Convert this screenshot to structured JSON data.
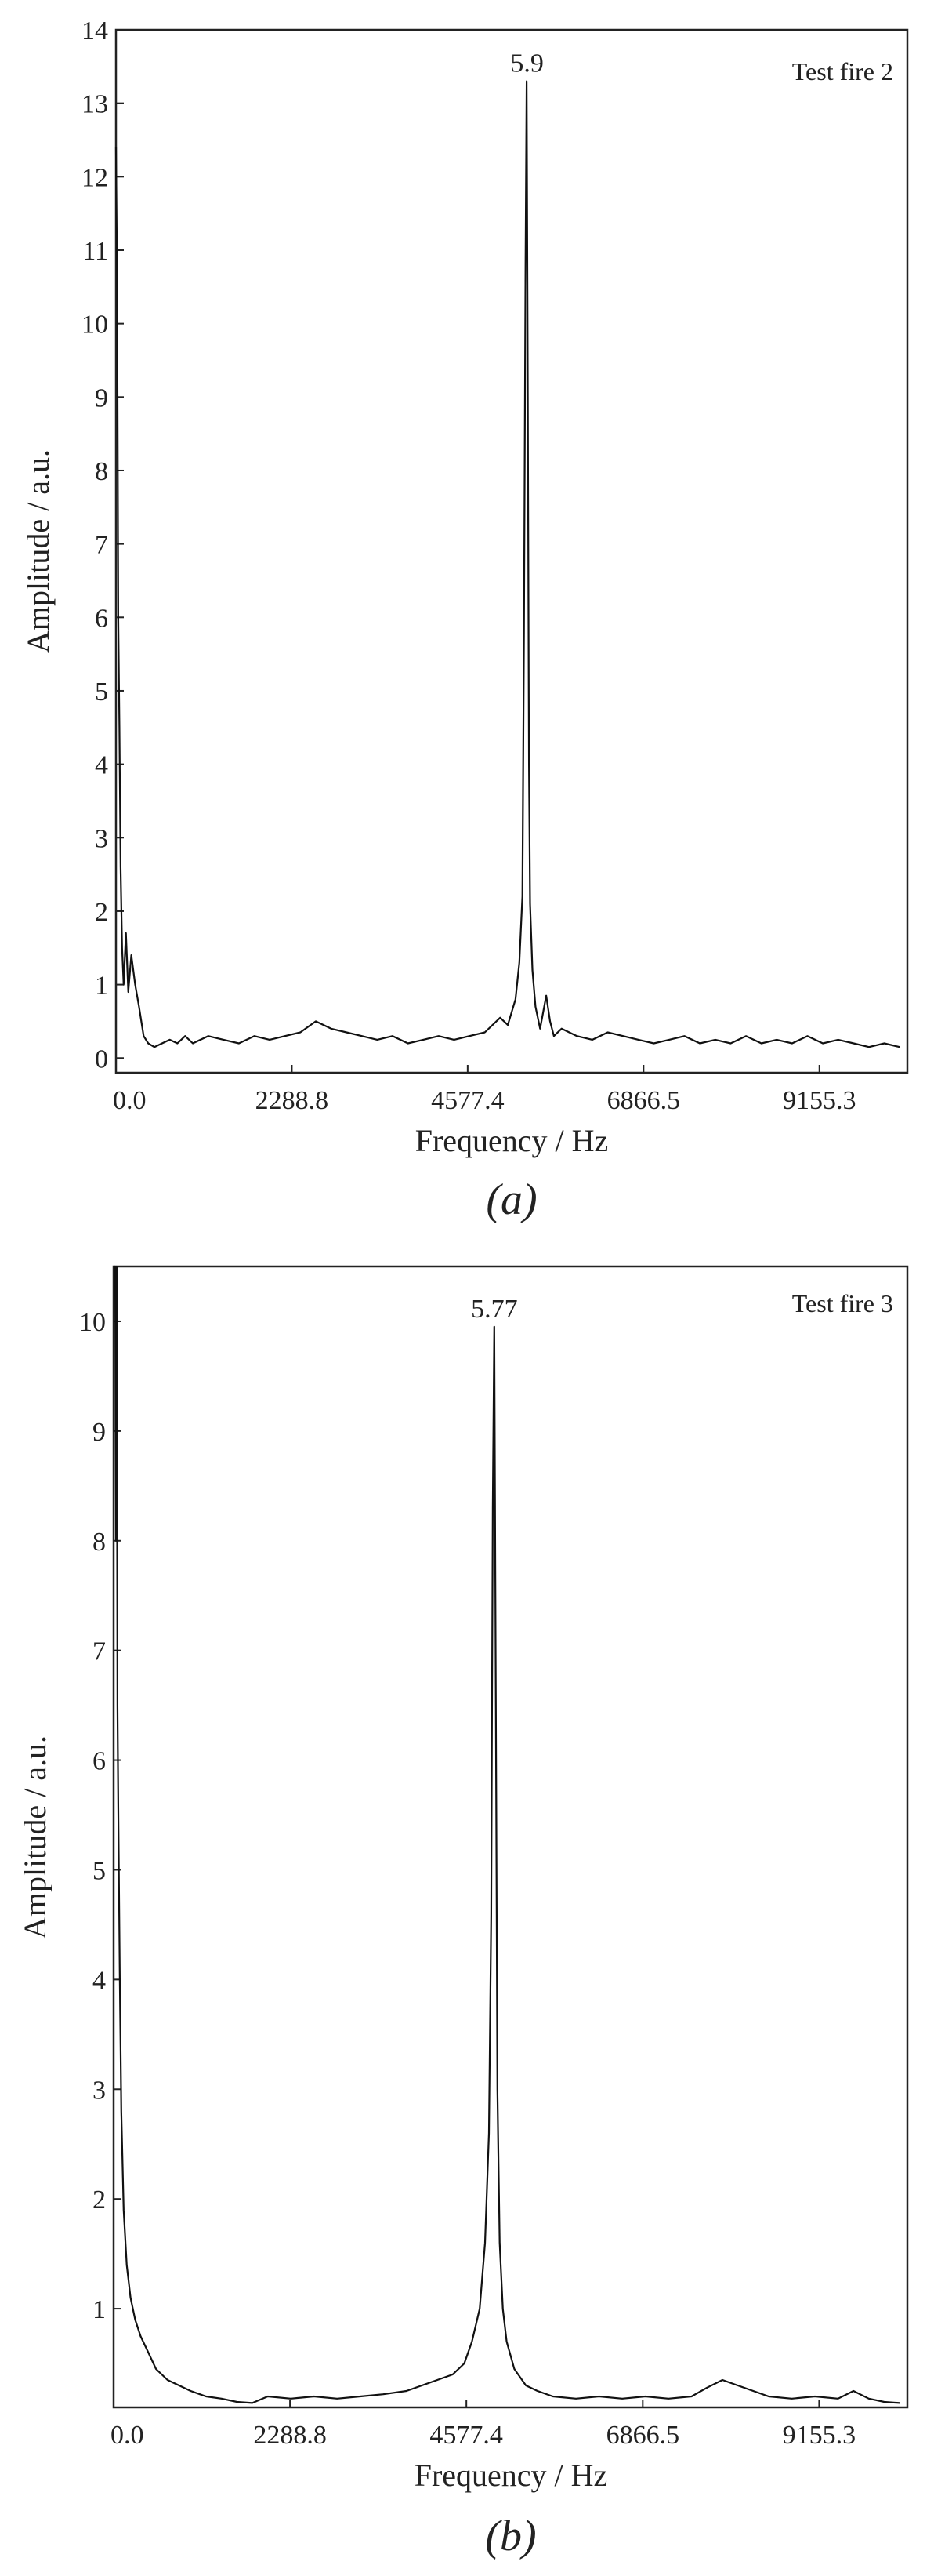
{
  "chart_data": [
    {
      "type": "line",
      "panel": "a",
      "caption": "(a)",
      "panel_label": "Test fire 2",
      "xlabel": "Frequency / Hz",
      "ylabel": "Amplitude / a.u.",
      "xlim": [
        0,
        10300
      ],
      "ylim": [
        -0.2,
        14
      ],
      "xticks": [
        0,
        2288.8,
        4577.4,
        6866.5,
        9155.3
      ],
      "xtick_labels": [
        "0.0",
        "2288.8",
        "4577.4",
        "6866.5",
        "9155.3"
      ],
      "yticks": [
        0,
        1,
        2,
        3,
        4,
        5,
        6,
        7,
        8,
        9,
        10,
        11,
        12,
        13,
        14
      ],
      "ytick_labels": [
        "0",
        "1",
        "2",
        "3",
        "4",
        "5",
        "6",
        "7",
        "8",
        "9",
        "10",
        "11",
        "12",
        "13",
        "14"
      ],
      "peak_label": "5.9",
      "peak": {
        "x": 5350,
        "y": 13.3
      },
      "series": [
        {
          "x": [
            0,
            15,
            30,
            45,
            60,
            80,
            100,
            130,
            160,
            200,
            250,
            300,
            360,
            420,
            500,
            600,
            700,
            800,
            900,
            1000,
            1200,
            1400,
            1600,
            1800,
            2000,
            2200,
            2400,
            2600,
            2800,
            3000,
            3200,
            3400,
            3600,
            3800,
            4000,
            4200,
            4400,
            4600,
            4800,
            5000,
            5100,
            5200,
            5250,
            5290,
            5310,
            5330,
            5345,
            5360,
            5375,
            5390,
            5420,
            5460,
            5520,
            5600,
            5650,
            5700,
            5800,
            6000,
            6200,
            6400,
            6600,
            6800,
            7000,
            7200,
            7400,
            7600,
            7800,
            8000,
            8200,
            8400,
            8600,
            8800,
            9000,
            9200,
            9400,
            9600,
            9800,
            10000,
            10200
          ],
          "y": [
            12.4,
            10.5,
            6.0,
            4.5,
            2.6,
            1.5,
            1.0,
            1.7,
            0.9,
            1.4,
            1.0,
            0.7,
            0.3,
            0.2,
            0.15,
            0.2,
            0.25,
            0.2,
            0.3,
            0.2,
            0.3,
            0.25,
            0.2,
            0.3,
            0.25,
            0.3,
            0.35,
            0.5,
            0.4,
            0.35,
            0.3,
            0.25,
            0.3,
            0.2,
            0.25,
            0.3,
            0.25,
            0.3,
            0.35,
            0.55,
            0.45,
            0.8,
            1.3,
            2.2,
            5.8,
            10.8,
            13.3,
            9.0,
            4.0,
            2.1,
            1.2,
            0.7,
            0.4,
            0.85,
            0.5,
            0.3,
            0.4,
            0.3,
            0.25,
            0.35,
            0.3,
            0.25,
            0.2,
            0.25,
            0.3,
            0.2,
            0.25,
            0.2,
            0.3,
            0.2,
            0.25,
            0.2,
            0.3,
            0.2,
            0.25,
            0.2,
            0.15,
            0.2,
            0.15
          ]
        }
      ]
    },
    {
      "type": "line",
      "panel": "b",
      "caption": "(b)",
      "panel_label": "Test fire 3",
      "xlabel": "Frequency / Hz",
      "ylabel": "Amplitude / a.u.",
      "xlim": [
        0,
        10300
      ],
      "ylim": [
        0.1,
        10.5
      ],
      "xticks": [
        0,
        2288.8,
        4577.4,
        6866.5,
        9155.3
      ],
      "xtick_labels": [
        "0.0",
        "2288.8",
        "4577.4",
        "6866.5",
        "9155.3"
      ],
      "yticks": [
        1,
        2,
        3,
        4,
        5,
        6,
        7,
        8,
        9,
        10
      ],
      "ytick_labels": [
        "1",
        "2",
        "3",
        "4",
        "5",
        "6",
        "7",
        "8",
        "9",
        "10"
      ],
      "peak_label": "5.77",
      "peak": {
        "x": 4940,
        "y": 9.95
      },
      "series": [
        {
          "x": [
            0,
            10,
            20,
            30,
            40,
            50,
            60,
            80,
            100,
            130,
            170,
            220,
            280,
            350,
            450,
            550,
            700,
            850,
            1000,
            1200,
            1400,
            1600,
            1800,
            2000,
            2300,
            2600,
            2900,
            3200,
            3500,
            3800,
            4000,
            4200,
            4400,
            4550,
            4650,
            4750,
            4820,
            4870,
            4900,
            4920,
            4940,
            4960,
            4980,
            5010,
            5050,
            5100,
            5200,
            5350,
            5500,
            5700,
            6000,
            6300,
            6600,
            6900,
            7200,
            7500,
            7700,
            7900,
            8100,
            8300,
            8500,
            8800,
            9100,
            9400,
            9600,
            9800,
            10000,
            10200
          ],
          "y": [
            10.5,
            10.5,
            10.5,
            8.0,
            10.5,
            6.5,
            5.6,
            4.0,
            2.8,
            1.9,
            1.4,
            1.1,
            0.9,
            0.75,
            0.6,
            0.45,
            0.35,
            0.3,
            0.25,
            0.2,
            0.18,
            0.15,
            0.14,
            0.2,
            0.18,
            0.2,
            0.18,
            0.2,
            0.22,
            0.25,
            0.3,
            0.35,
            0.4,
            0.5,
            0.7,
            1.0,
            1.6,
            2.6,
            4.6,
            8.3,
            9.95,
            6.5,
            3.0,
            1.6,
            1.0,
            0.7,
            0.45,
            0.3,
            0.25,
            0.2,
            0.18,
            0.2,
            0.18,
            0.2,
            0.18,
            0.2,
            0.28,
            0.35,
            0.3,
            0.25,
            0.2,
            0.18,
            0.2,
            0.18,
            0.25,
            0.18,
            0.15,
            0.14
          ]
        }
      ]
    }
  ]
}
